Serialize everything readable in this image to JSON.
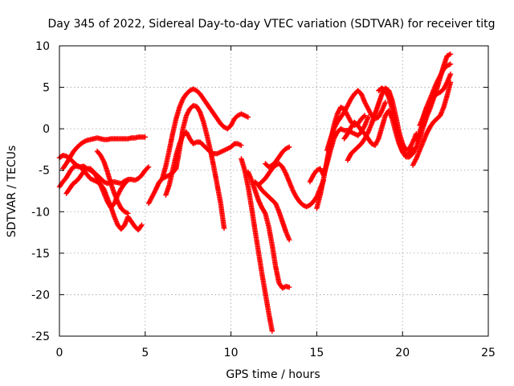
{
  "chart_data": {
    "type": "scatter",
    "title": "Day 345 of 2022, Sidereal Day-to-day VTEC variation (SDTVAR) for receiver titg",
    "xlabel": "GPS time / hours",
    "ylabel": "SDTVAR / TECUs",
    "xlim": [
      0,
      25
    ],
    "ylim": [
      -25,
      10
    ],
    "xticks": [
      0,
      5,
      10,
      15,
      20,
      25
    ],
    "yticks": [
      -25,
      -20,
      -15,
      -10,
      -5,
      0,
      5,
      10
    ],
    "grid": true,
    "marker": "plus",
    "color": "#ff0000",
    "series": [
      {
        "x": [
          0.0,
          0.2,
          0.4,
          0.6,
          0.8,
          1.0,
          1.2,
          1.4,
          1.6,
          1.8,
          2.0,
          2.2,
          2.4,
          2.6,
          2.8,
          3.0,
          3.2,
          3.4,
          3.6,
          3.8,
          4.0,
          4.2,
          4.4,
          4.6,
          4.8
        ],
        "y": [
          -3.5,
          -3.2,
          -3.3,
          -3.6,
          -4.0,
          -4.4,
          -4.6,
          -5.0,
          -5.5,
          -6.0,
          -6.2,
          -6.4,
          -6.7,
          -7.3,
          -8.4,
          -9.4,
          -10.6,
          -11.6,
          -12.1,
          -11.6,
          -10.6,
          -11.2,
          -11.8,
          -12.2,
          -11.6
        ]
      },
      {
        "x": [
          0.0,
          0.2,
          0.4,
          0.6,
          0.8,
          1.0,
          1.2,
          1.4,
          1.6,
          1.8,
          2.0,
          2.2,
          2.4,
          2.6,
          2.8,
          3.0,
          3.2,
          3.4,
          3.6,
          3.8,
          4.0,
          4.2,
          4.4,
          4.6,
          4.8,
          5.0,
          5.2
        ],
        "y": [
          -7.0,
          -6.4,
          -5.9,
          -5.2,
          -4.6,
          -4.5,
          -4.6,
          -4.5,
          -4.8,
          -5.0,
          -5.3,
          -5.6,
          -6.0,
          -6.4,
          -6.6,
          -6.4,
          -6.4,
          -6.5,
          -6.6,
          -6.3,
          -6.1,
          -6.1,
          -6.2,
          -6.0,
          -5.6,
          -5.0,
          -4.6
        ]
      },
      {
        "x": [
          0.2,
          0.4,
          0.6,
          0.8,
          1.0,
          1.2,
          1.4,
          1.6,
          1.8,
          2.0,
          2.2,
          2.4,
          2.6,
          2.8,
          3.0,
          3.2,
          3.4,
          3.6,
          3.8,
          4.0,
          4.2,
          4.4,
          4.6,
          4.8,
          5.0
        ],
        "y": [
          -4.8,
          -4.2,
          -3.5,
          -2.8,
          -2.3,
          -1.9,
          -1.6,
          -1.4,
          -1.3,
          -1.2,
          -1.1,
          -1.2,
          -1.3,
          -1.3,
          -1.2,
          -1.2,
          -1.2,
          -1.2,
          -1.2,
          -1.2,
          -1.1,
          -1.1,
          -1.0,
          -1.0,
          -1.0
        ]
      },
      {
        "x": [
          0.4,
          0.6,
          0.8,
          1.0,
          1.2,
          1.4,
          1.6,
          1.8,
          2.0,
          2.2,
          2.4,
          2.6,
          2.8,
          3.0,
          3.2,
          3.4,
          3.6,
          3.8,
          4.0
        ],
        "y": [
          -7.8,
          -7.2,
          -6.6,
          -6.3,
          -5.8,
          -5.2,
          -4.8,
          -4.8,
          -5.2,
          -5.9,
          -6.8,
          -7.8,
          -8.8,
          -9.5,
          -9.0,
          -8.0,
          -7.2,
          -6.6,
          -6.2
        ]
      },
      {
        "x": [
          2.2,
          2.4,
          2.6,
          2.8,
          3.0,
          3.2,
          3.4,
          3.6,
          3.8,
          4.0
        ],
        "y": [
          -2.7,
          -3.2,
          -4.0,
          -5.2,
          -6.6,
          -7.8,
          -8.8,
          -9.6,
          -10.0,
          -10.2
        ]
      },
      {
        "x": [
          5.2,
          5.4,
          5.6,
          5.8,
          6.0,
          6.2,
          6.4,
          6.6,
          6.8,
          7.0,
          7.2,
          7.4,
          7.6,
          7.8,
          8.0,
          8.2,
          8.4,
          8.6,
          8.8,
          9.0,
          9.2,
          9.4,
          9.6
        ],
        "y": [
          -9.0,
          -8.2,
          -7.4,
          -6.5,
          -6.0,
          -5.8,
          -5.6,
          -5.3,
          -4.8,
          -2.5,
          0.0,
          1.6,
          2.4,
          2.8,
          2.7,
          2.0,
          0.8,
          -0.8,
          -2.6,
          -4.6,
          -6.8,
          -9.0,
          -12.0
        ]
      },
      {
        "x": [
          6.0,
          6.2,
          6.4,
          6.6,
          6.8,
          7.0,
          7.2,
          7.4,
          7.6,
          7.8,
          8.0,
          8.2,
          8.4,
          8.6,
          8.8,
          9.0,
          9.2,
          9.4,
          9.6,
          9.8,
          10.0,
          10.2,
          10.4,
          10.6,
          10.8,
          11.0
        ],
        "y": [
          -6.0,
          -4.5,
          -2.6,
          -0.6,
          1.2,
          2.6,
          3.6,
          4.2,
          4.6,
          4.8,
          4.6,
          4.2,
          3.6,
          3.0,
          2.4,
          1.8,
          1.2,
          0.6,
          0.2,
          0.0,
          0.4,
          1.2,
          1.6,
          1.8,
          1.6,
          1.4
        ]
      },
      {
        "x": [
          6.2,
          6.4,
          6.6,
          6.8,
          7.0,
          7.2,
          7.4,
          7.6,
          7.8,
          8.0,
          8.2,
          8.4,
          8.6,
          8.8,
          9.0,
          9.2,
          9.4,
          9.6,
          9.8,
          10.0,
          10.2,
          10.4,
          10.6
        ],
        "y": [
          -8.0,
          -6.8,
          -5.0,
          -3.2,
          -1.8,
          -0.8,
          -0.4,
          -1.2,
          -1.8,
          -1.6,
          -1.6,
          -2.0,
          -2.4,
          -2.8,
          -3.0,
          -3.0,
          -2.8,
          -2.6,
          -2.4,
          -2.2,
          -1.8,
          -1.8,
          -2.0
        ]
      },
      {
        "x": [
          10.6,
          10.8,
          11.0,
          11.2,
          11.4,
          11.6,
          11.8,
          12.0,
          12.2,
          12.4
        ],
        "y": [
          -3.6,
          -5.0,
          -7.0,
          -9.5,
          -12.2,
          -14.8,
          -17.4,
          -19.8,
          -22.2,
          -24.4
        ]
      },
      {
        "x": [
          11.0,
          11.2,
          11.4,
          11.6,
          11.8,
          12.0,
          12.2,
          12.4,
          12.6,
          12.8,
          13.0,
          13.2,
          13.4
        ],
        "y": [
          -5.2,
          -6.2,
          -7.4,
          -8.6,
          -9.5,
          -10.2,
          -11.8,
          -14.0,
          -16.6,
          -18.6,
          -19.2,
          -19.0,
          -19.1
        ]
      },
      {
        "x": [
          11.4,
          11.6,
          11.8,
          12.0,
          12.2,
          12.4,
          12.6,
          12.8,
          13.0,
          13.2,
          13.4
        ],
        "y": [
          -6.4,
          -6.8,
          -7.4,
          -7.8,
          -8.2,
          -8.6,
          -9.0,
          -10.0,
          -11.2,
          -12.4,
          -13.4
        ]
      },
      {
        "x": [
          11.6,
          11.8,
          12.0,
          12.2,
          12.4,
          12.6,
          12.8,
          13.0,
          13.2,
          13.4,
          13.6,
          13.8,
          14.0,
          14.2,
          14.4,
          14.6,
          14.8,
          15.0,
          15.2,
          15.4
        ],
        "y": [
          -6.8,
          -6.4,
          -6.0,
          -5.4,
          -4.8,
          -4.4,
          -4.2,
          -4.6,
          -5.4,
          -6.4,
          -7.4,
          -8.2,
          -8.8,
          -9.2,
          -9.4,
          -9.2,
          -8.8,
          -8.2,
          -7.2,
          -6.2
        ]
      },
      {
        "x": [
          12.0,
          12.2,
          12.4,
          12.6,
          12.8,
          13.0,
          13.2,
          13.4
        ],
        "y": [
          -4.2,
          -4.6,
          -4.4,
          -4.0,
          -3.4,
          -2.8,
          -2.4,
          -2.2
        ]
      },
      {
        "x": [
          14.6,
          14.8,
          15.0,
          15.2,
          15.4,
          15.6,
          15.8,
          16.0,
          16.2,
          16.4,
          16.6,
          16.8,
          17.0,
          17.2,
          17.4,
          17.6,
          17.8,
          18.0
        ],
        "y": [
          -6.4,
          -5.6,
          -5.0,
          -4.8,
          -5.6,
          -4.2,
          -2.6,
          -1.2,
          -0.4,
          0.0,
          -0.2,
          -0.2,
          -0.4,
          -0.6,
          -0.8,
          -0.4,
          0.4,
          1.4
        ]
      },
      {
        "x": [
          15.0,
          15.2,
          15.4,
          15.6,
          15.8,
          16.0,
          16.2,
          16.4,
          16.6,
          16.8,
          17.0,
          17.2,
          17.4,
          17.6,
          17.8
        ],
        "y": [
          -9.6,
          -8.0,
          -6.0,
          -3.8,
          -1.6,
          0.4,
          1.8,
          2.6,
          2.4,
          1.6,
          0.8,
          0.4,
          0.6,
          1.2,
          1.6
        ]
      },
      {
        "x": [
          15.6,
          15.8,
          16.0,
          16.2,
          16.4,
          16.6,
          16.8,
          17.0,
          17.2,
          17.4,
          17.6,
          17.8,
          18.0,
          18.2,
          18.4,
          18.6,
          18.8,
          19.0
        ],
        "y": [
          -2.6,
          -1.2,
          0.0,
          0.8,
          1.4,
          2.0,
          2.8,
          3.6,
          4.2,
          4.6,
          4.2,
          3.2,
          2.4,
          1.6,
          1.2,
          1.4,
          2.2,
          3.2
        ]
      },
      {
        "x": [
          16.8,
          17.0,
          17.2,
          17.4,
          17.6,
          17.8,
          18.0,
          18.2,
          18.4,
          18.6,
          18.8,
          19.0,
          19.2,
          19.4,
          19.6,
          19.8,
          20.0,
          20.2,
          20.4,
          20.6,
          20.8
        ],
        "y": [
          -3.8,
          -3.0,
          -2.6,
          -2.2,
          -1.8,
          -1.2,
          -0.4,
          0.6,
          1.8,
          3.0,
          4.2,
          4.9,
          4.6,
          3.4,
          1.6,
          -0.4,
          -1.8,
          -2.6,
          -2.4,
          -1.6,
          -0.6
        ]
      },
      {
        "x": [
          16.6,
          16.8,
          17.0,
          17.2,
          17.4,
          17.6,
          17.8,
          18.0,
          18.2,
          18.4,
          18.6,
          18.8,
          19.0,
          19.2,
          19.4,
          19.6,
          19.8,
          20.0,
          20.2,
          20.4,
          20.6
        ],
        "y": [
          -1.2,
          -0.6,
          0.2,
          0.8,
          0.4,
          -0.2,
          -0.6,
          -1.2,
          -1.8,
          -2.0,
          -1.2,
          0.2,
          1.6,
          2.2,
          1.2,
          -0.4,
          -1.8,
          -2.8,
          -3.2,
          -3.0,
          -2.4
        ]
      },
      {
        "x": [
          18.6,
          18.8,
          19.0,
          19.2,
          19.4,
          19.6,
          19.8,
          20.0,
          20.2,
          20.4,
          20.6,
          20.8,
          21.0,
          21.2,
          21.4,
          21.6,
          21.8,
          22.0,
          22.2,
          22.4,
          22.6,
          22.8
        ],
        "y": [
          4.6,
          4.9,
          4.6,
          3.8,
          2.4,
          0.4,
          -1.4,
          -2.8,
          -3.4,
          -3.4,
          -3.0,
          -2.2,
          -1.2,
          0.2,
          1.4,
          2.4,
          3.6,
          4.8,
          6.2,
          7.6,
          8.8,
          9.0
        ]
      },
      {
        "x": [
          20.6,
          20.8,
          21.0,
          21.2,
          21.4,
          21.6,
          21.8,
          22.0,
          22.2,
          22.4,
          22.6,
          22.8
        ],
        "y": [
          -4.4,
          -3.6,
          -2.6,
          -1.6,
          -0.6,
          0.2,
          0.8,
          1.2,
          1.6,
          2.6,
          4.0,
          5.6
        ]
      },
      {
        "x": [
          20.8,
          21.0,
          21.2,
          21.4,
          21.6,
          21.8,
          22.0,
          22.2,
          22.4,
          22.6,
          22.8
        ],
        "y": [
          -1.4,
          -0.4,
          0.8,
          2.0,
          3.0,
          3.8,
          4.2,
          4.4,
          4.8,
          5.6,
          6.6
        ]
      },
      {
        "x": [
          21.0,
          21.2,
          21.4,
          21.6,
          21.8,
          22.0,
          22.2,
          22.4,
          22.6,
          22.8
        ],
        "y": [
          0.4,
          1.4,
          2.6,
          3.6,
          4.6,
          5.6,
          6.4,
          7.2,
          7.6,
          7.8
        ]
      }
    ]
  }
}
